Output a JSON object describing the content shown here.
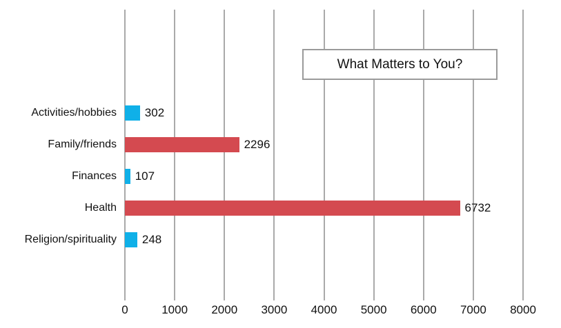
{
  "chart_data": {
    "type": "bar",
    "orientation": "horizontal",
    "title": "What Matters to You?",
    "xlabel": "",
    "ylabel": "",
    "categories": [
      "Activities/hobbies",
      "Family/friends",
      "Finances",
      "Health",
      "Religion/spirituality"
    ],
    "values": [
      302,
      2296,
      107,
      6732,
      248
    ],
    "bar_colors": [
      "#0fb0e8",
      "#d44a50",
      "#0fb0e8",
      "#d44a50",
      "#0fb0e8"
    ],
    "xlim": [
      0,
      8000
    ],
    "xticks": [
      "0",
      "1000",
      "2000",
      "3000",
      "4000",
      "5000",
      "6000",
      "7000",
      "8000"
    ],
    "grid": "vertical",
    "legend": "none",
    "data_labels": [
      "302",
      "2296",
      "107",
      "6732",
      "248"
    ]
  },
  "colors": {
    "blue": "#0fb0e8",
    "red": "#d44a50",
    "grid": "#a9a9a9"
  }
}
